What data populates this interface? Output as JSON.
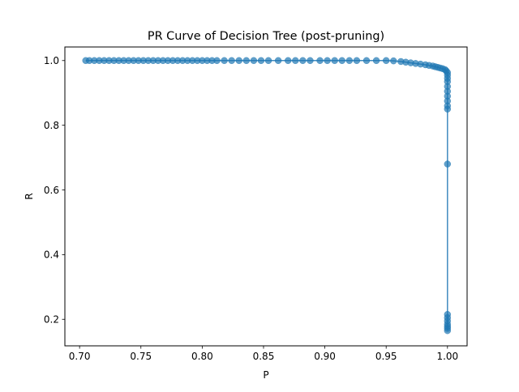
{
  "chart_data": {
    "type": "line",
    "title": "PR Curve of Decision Tree (post-pruning)",
    "xlabel": "P",
    "ylabel": "R",
    "xlim": [
      0.688,
      1.016
    ],
    "ylim": [
      0.118,
      1.042
    ],
    "x_ticks": [
      "0.70",
      "0.75",
      "0.80",
      "0.85",
      "0.90",
      "0.95",
      "1.00"
    ],
    "y_ticks": [
      "0.2",
      "0.4",
      "0.6",
      "0.8",
      "1.0"
    ],
    "grid": false,
    "legend": "none",
    "markers": true,
    "series_color": "#1f77b4",
    "series": [
      {
        "x": [
          0.705,
          0.708,
          0.712,
          0.716,
          0.72,
          0.724,
          0.728,
          0.732,
          0.736,
          0.74,
          0.744,
          0.748,
          0.752,
          0.756,
          0.76,
          0.764,
          0.768,
          0.772,
          0.776,
          0.78,
          0.784,
          0.788,
          0.792,
          0.796,
          0.8,
          0.804,
          0.808,
          0.812,
          0.818,
          0.824,
          0.83,
          0.836,
          0.842,
          0.848,
          0.854,
          0.862,
          0.87,
          0.876,
          0.882,
          0.888,
          0.896,
          0.902,
          0.908,
          0.914,
          0.92,
          0.926,
          0.934,
          0.942,
          0.95,
          0.956,
          0.962,
          0.966,
          0.97,
          0.974,
          0.978,
          0.982,
          0.985,
          0.988,
          0.99,
          0.992,
          0.994,
          0.996,
          0.998,
          0.999,
          1.0,
          1.0,
          1.0,
          1.0,
          1.0,
          1.0,
          1.0,
          1.0,
          1.0,
          1.0,
          1.0,
          1.0,
          1.0,
          1.0,
          1.0,
          1.0,
          1.0,
          1.0
        ],
        "y": [
          1.0,
          1.0,
          1.0,
          1.0,
          1.0,
          1.0,
          1.0,
          1.0,
          1.0,
          1.0,
          1.0,
          1.0,
          1.0,
          1.0,
          1.0,
          1.0,
          1.0,
          1.0,
          1.0,
          1.0,
          1.0,
          1.0,
          1.0,
          1.0,
          1.0,
          1.0,
          1.0,
          1.0,
          1.0,
          1.0,
          1.0,
          1.0,
          1.0,
          1.0,
          1.0,
          1.0,
          1.0,
          1.0,
          1.0,
          1.0,
          1.0,
          1.0,
          1.0,
          1.0,
          1.0,
          1.0,
          1.0,
          1.0,
          1.0,
          0.999,
          0.997,
          0.995,
          0.993,
          0.991,
          0.989,
          0.987,
          0.985,
          0.983,
          0.981,
          0.979,
          0.977,
          0.975,
          0.972,
          0.968,
          0.963,
          0.955,
          0.945,
          0.935,
          0.92,
          0.905,
          0.89,
          0.875,
          0.86,
          0.85,
          0.68,
          0.215,
          0.205,
          0.195,
          0.185,
          0.178,
          0.172,
          0.165
        ]
      }
    ]
  }
}
